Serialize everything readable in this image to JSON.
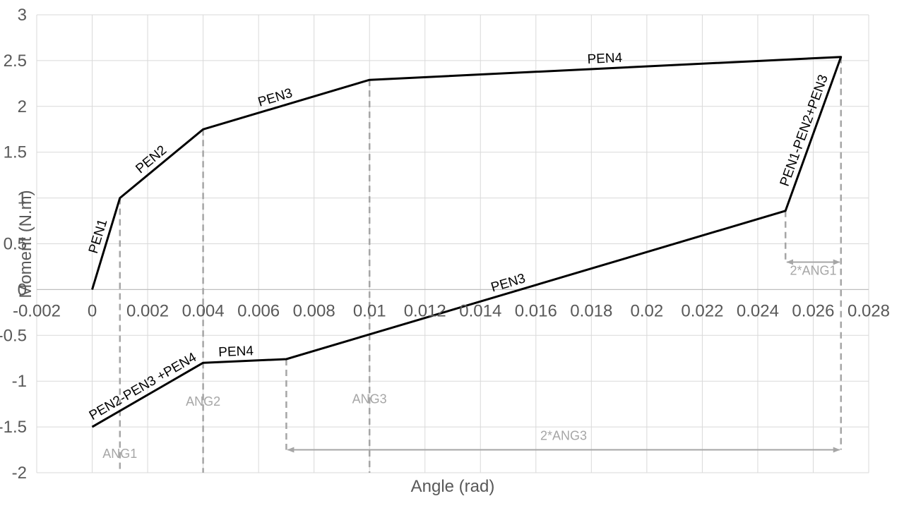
{
  "chart_data": {
    "type": "line",
    "title": "",
    "xlabel": "Angle (rad)",
    "ylabel": "Moment (N.m)",
    "xlim": [
      -0.002,
      0.028
    ],
    "ylim": [
      -2,
      3
    ],
    "x_ticks": [
      -0.002,
      0,
      0.002,
      0.004,
      0.006,
      0.008,
      0.01,
      0.012,
      0.014,
      0.016,
      0.018,
      0.02,
      0.022,
      0.024,
      0.026,
      0.028
    ],
    "x_tick_labels": [
      "-0.002",
      "0",
      "0.002",
      "0.004",
      "0.006",
      "0.008",
      "0.01",
      "0.012",
      "0.014",
      "0.016",
      "0.018",
      "0.02",
      "0.022",
      "0.024",
      "0.026",
      "0.028"
    ],
    "y_ticks": [
      -2,
      -1.5,
      -1,
      -0.5,
      0,
      0.5,
      1,
      1.5,
      2,
      2.5,
      3
    ],
    "y_tick_labels": [
      "-2",
      "-1.5",
      "-1",
      "-0.5",
      "0",
      "0.5",
      "1",
      "1.5",
      "2",
      "2.5",
      "3"
    ],
    "grid": true,
    "legend": "none",
    "line_color": "#000000",
    "annotation_color": "#a6a6a6",
    "series": [
      {
        "x": [
          0,
          0.001,
          0.004,
          0.01,
          0.027,
          0.025,
          0.007,
          0.004,
          0
        ],
        "y": [
          0,
          1,
          1.75,
          2.29,
          2.54,
          0.86,
          -0.76,
          -0.8,
          -1.5
        ]
      }
    ],
    "segment_labels": [
      {
        "text": "PEN1",
        "x0": 0,
        "y0": 0,
        "x1": 0.001,
        "y1": 1,
        "t": 0.55,
        "side": "left"
      },
      {
        "text": "PEN2",
        "x0": 0.001,
        "y0": 1,
        "x1": 0.004,
        "y1": 1.75,
        "t": 0.45,
        "side": "left"
      },
      {
        "text": "PEN3",
        "x0": 0.004,
        "y0": 1.75,
        "x1": 0.01,
        "y1": 2.29,
        "t": 0.45,
        "side": "left"
      },
      {
        "text": "PEN4",
        "x0": 0.01,
        "y0": 2.29,
        "x1": 0.027,
        "y1": 2.54,
        "t": 0.5,
        "side": "left"
      },
      {
        "text": "PEN1-PEN2+PEN3",
        "x0": 0.025,
        "y0": 0.86,
        "x1": 0.027,
        "y1": 2.54,
        "t": 0.5,
        "side": "left"
      },
      {
        "text": "PEN3",
        "x0": 0.007,
        "y0": -0.76,
        "x1": 0.025,
        "y1": 0.86,
        "t": 0.45,
        "side": "left"
      },
      {
        "text": "PEN4",
        "x0": 0.004,
        "y0": -0.8,
        "x1": 0.007,
        "y1": -0.76,
        "t": 0.4,
        "side": "left"
      },
      {
        "text": "PEN2-PEN3 +PEN4",
        "x0": 0,
        "y0": -1.5,
        "x1": 0.004,
        "y1": -0.8,
        "t": 0.5,
        "side": "left"
      }
    ],
    "vertical_dashed_lines": [
      {
        "x": 0.001,
        "y_top": 1,
        "y_bottom": -2
      },
      {
        "x": 0.004,
        "y_top": 1.75,
        "y_bottom": -2
      },
      {
        "x": 0.01,
        "y_top": 2.29,
        "y_bottom": -2
      },
      {
        "x": 0.007,
        "y_top": -0.76,
        "y_bottom": -1.75
      },
      {
        "x": 0.025,
        "y_top": 0.86,
        "y_bottom": 0.3
      },
      {
        "x": 0.027,
        "y_top": 2.54,
        "y_bottom": -1.75
      }
    ],
    "annotations": [
      {
        "text": "ANG1",
        "x": 0.001,
        "y": -1.84
      },
      {
        "text": "ANG2",
        "x": 0.004,
        "y": -1.27
      },
      {
        "text": "ANG3",
        "x": 0.01,
        "y": -1.24
      },
      {
        "text": "2*ANG3",
        "x": 0.017,
        "y": -1.64
      },
      {
        "text": "2*ANG1",
        "x": 0.026,
        "y": 0.16
      }
    ],
    "dimension_arrows": [
      {
        "label": "2*ANG3",
        "x0": 0.007,
        "x1": 0.027,
        "y": -1.75
      },
      {
        "label": "2*ANG1",
        "x0": 0.025,
        "x1": 0.027,
        "y": 0.3
      }
    ]
  }
}
